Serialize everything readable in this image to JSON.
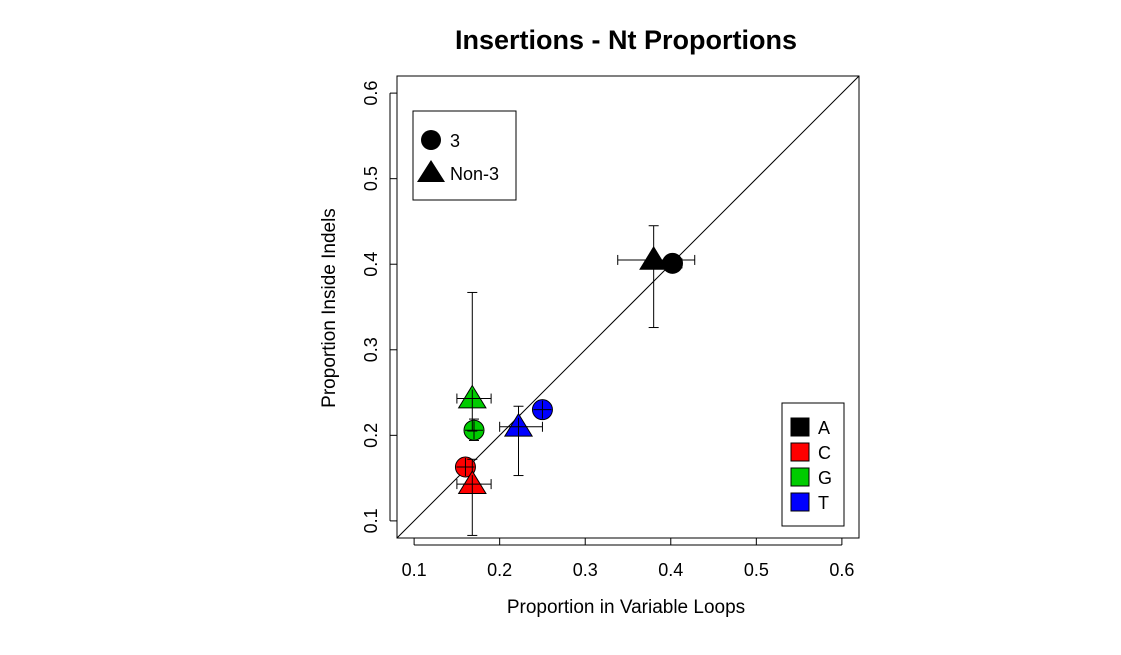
{
  "chart_data": {
    "type": "scatter",
    "title": "Insertions - Nt Proportions",
    "xlabel": "Proportion in Variable Loops",
    "ylabel": "Proportion Inside Indels",
    "xlim": [
      0.08,
      0.62
    ],
    "ylim": [
      0.08,
      0.62
    ],
    "xticks": [
      "0.1",
      "0.2",
      "0.3",
      "0.4",
      "0.5",
      "0.6"
    ],
    "yticks": [
      "0.1",
      "0.2",
      "0.3",
      "0.4",
      "0.5",
      "0.6"
    ],
    "reference_line": "y = x",
    "grid": false,
    "shape_legend": {
      "position": "top-left",
      "entries": [
        {
          "label": "3",
          "shape": "circle"
        },
        {
          "label": "Non-3",
          "shape": "triangle"
        }
      ]
    },
    "color_legend": {
      "position": "bottom-right",
      "entries": [
        {
          "label": "A",
          "color": "#000000"
        },
        {
          "label": "C",
          "color": "#ff0000"
        },
        {
          "label": "G",
          "color": "#00cc00"
        },
        {
          "label": "T",
          "color": "#0000ff"
        }
      ]
    },
    "series": [
      {
        "name": "3",
        "shape": "circle",
        "points": [
          {
            "nt": "A",
            "color": "#000000",
            "x": 0.402,
            "y": 0.401,
            "xerr": [
              0.392,
              0.413
            ],
            "yerr": [
              0.393,
              0.409
            ]
          },
          {
            "nt": "C",
            "color": "#ff0000",
            "x": 0.16,
            "y": 0.163,
            "xerr": [
              0.153,
              0.168
            ],
            "yerr": [
              0.154,
              0.172
            ]
          },
          {
            "nt": "G",
            "color": "#00cc00",
            "x": 0.17,
            "y": 0.206,
            "xerr": [
              0.163,
              0.178
            ],
            "yerr": [
              0.194,
              0.219
            ]
          },
          {
            "nt": "T",
            "color": "#0000ff",
            "x": 0.25,
            "y": 0.23,
            "xerr": [
              0.242,
              0.258
            ],
            "yerr": [
              0.222,
              0.238
            ]
          }
        ]
      },
      {
        "name": "Non-3",
        "shape": "triangle",
        "points": [
          {
            "nt": "A",
            "color": "#000000",
            "x": 0.38,
            "y": 0.405,
            "xerr": [
              0.338,
              0.428
            ],
            "yerr": [
              0.326,
              0.445
            ]
          },
          {
            "nt": "C",
            "color": "#ff0000",
            "x": 0.168,
            "y": 0.143,
            "xerr": [
              0.15,
              0.19
            ],
            "yerr": [
              0.083,
              0.172
            ]
          },
          {
            "nt": "G",
            "color": "#00cc00",
            "x": 0.168,
            "y": 0.243,
            "xerr": [
              0.15,
              0.19
            ],
            "yerr": [
              0.205,
              0.367
            ]
          },
          {
            "nt": "T",
            "color": "#0000ff",
            "x": 0.222,
            "y": 0.21,
            "xerr": [
              0.2,
              0.25
            ],
            "yerr": [
              0.153,
              0.234
            ]
          }
        ]
      }
    ]
  }
}
